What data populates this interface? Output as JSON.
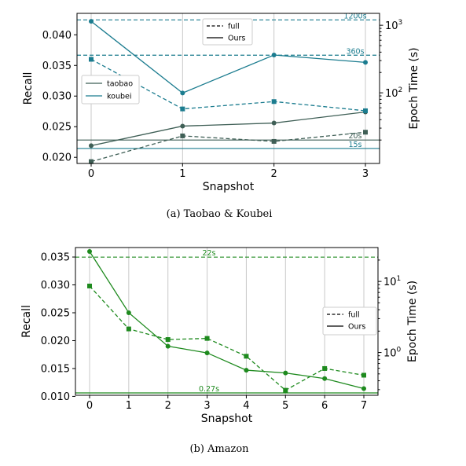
{
  "chart_data": [
    {
      "type": "line",
      "caption": "(a)  Taobao & Koubei",
      "xlabel": "Snapshot",
      "ylabel": "Recall",
      "ylabel_right": "Epoch Time (s)",
      "x": [
        0,
        1,
        2,
        3
      ],
      "xticks": [
        "0",
        "1",
        "2",
        "3"
      ],
      "ylim": [
        0.019,
        0.0435
      ],
      "yticks": [
        "0.020",
        "0.025",
        "0.030",
        "0.035",
        "0.040"
      ],
      "ytick_values": [
        0.02,
        0.025,
        0.03,
        0.035,
        0.04
      ],
      "right_axis_scale": "log",
      "right_ylim": [
        9,
        1500
      ],
      "right_ticks": [
        {
          "value": 100,
          "base": "10",
          "exp": "2"
        },
        {
          "value": 1000,
          "base": "10",
          "exp": "3"
        }
      ],
      "grid": "vertical",
      "legend_style": {
        "position": "top-center",
        "entries": [
          {
            "label": "full",
            "dash": "dashed"
          },
          {
            "label": "Ours",
            "dash": "solid"
          }
        ]
      },
      "legend_series": {
        "position": "left",
        "entries": [
          {
            "label": "taobao",
            "color": "#3f5f56"
          },
          {
            "label": "koubei",
            "color": "#1b7c8f"
          }
        ]
      },
      "series": [
        {
          "name": "taobao",
          "style": "Ours",
          "color": "#3f5f56",
          "marker": "circle",
          "values": [
            0.0219,
            0.0251,
            0.0256,
            0.0274
          ]
        },
        {
          "name": "taobao",
          "style": "full",
          "color": "#3f5f56",
          "marker": "square",
          "values": [
            0.0193,
            0.0235,
            0.0226,
            0.0241
          ]
        },
        {
          "name": "koubei",
          "style": "Ours",
          "color": "#1b7c8f",
          "marker": "circle",
          "values": [
            0.0422,
            0.0305,
            0.0367,
            0.0355
          ]
        },
        {
          "name": "koubei",
          "style": "full",
          "color": "#1b7c8f",
          "marker": "square",
          "values": [
            0.036,
            0.0279,
            0.0291,
            0.0276
          ]
        }
      ],
      "time_lines": [
        {
          "label": "1200s",
          "value": 1200,
          "color": "#1b7c8f",
          "dash": "dashed"
        },
        {
          "label": "360s",
          "value": 360,
          "color": "#1b7c8f",
          "dash": "dashed"
        },
        {
          "label": "20s",
          "value": 20,
          "color": "#3f5f56",
          "dash": "solid"
        },
        {
          "label": "15s",
          "value": 15,
          "color": "#1b7c8f",
          "dash": "solid"
        }
      ]
    },
    {
      "type": "line",
      "caption": "(b)  Amazon",
      "xlabel": "Snapshot",
      "ylabel": "Recall",
      "ylabel_right": "Epoch Time (s)",
      "x": [
        0,
        1,
        2,
        3,
        4,
        5,
        6,
        7
      ],
      "xticks": [
        "0",
        "1",
        "2",
        "3",
        "4",
        "5",
        "6",
        "7"
      ],
      "ylim": [
        0.0102,
        0.0367
      ],
      "yticks": [
        "0.010",
        "0.015",
        "0.020",
        "0.025",
        "0.030",
        "0.035"
      ],
      "ytick_values": [
        0.01,
        0.015,
        0.02,
        0.025,
        0.03,
        0.035
      ],
      "right_axis_scale": "log",
      "right_ylim": [
        0.25,
        30
      ],
      "right_ticks": [
        {
          "value": 1,
          "base": "10",
          "exp": "0"
        },
        {
          "value": 10,
          "base": "10",
          "exp": "1"
        }
      ],
      "grid": "vertical",
      "legend_style": {
        "position": "right",
        "entries": [
          {
            "label": "full",
            "dash": "dashed"
          },
          {
            "label": "Ours",
            "dash": "solid"
          }
        ]
      },
      "series": [
        {
          "name": "amazon",
          "style": "Ours",
          "color": "#1e8a1e",
          "marker": "circle",
          "values": [
            0.036,
            0.025,
            0.019,
            0.0178,
            0.0147,
            0.0142,
            0.0132,
            0.0114
          ]
        },
        {
          "name": "amazon",
          "style": "full",
          "color": "#1e8a1e",
          "marker": "square",
          "values": [
            0.0298,
            0.0221,
            0.0202,
            0.0204,
            0.0172,
            0.0111,
            0.015,
            0.0138
          ]
        }
      ],
      "time_lines": [
        {
          "label": "22s",
          "value": 22,
          "color": "#1e8a1e",
          "dash": "dashed"
        },
        {
          "label": "0.27s",
          "value": 0.27,
          "color": "#1e8a1e",
          "dash": "solid"
        }
      ]
    }
  ]
}
